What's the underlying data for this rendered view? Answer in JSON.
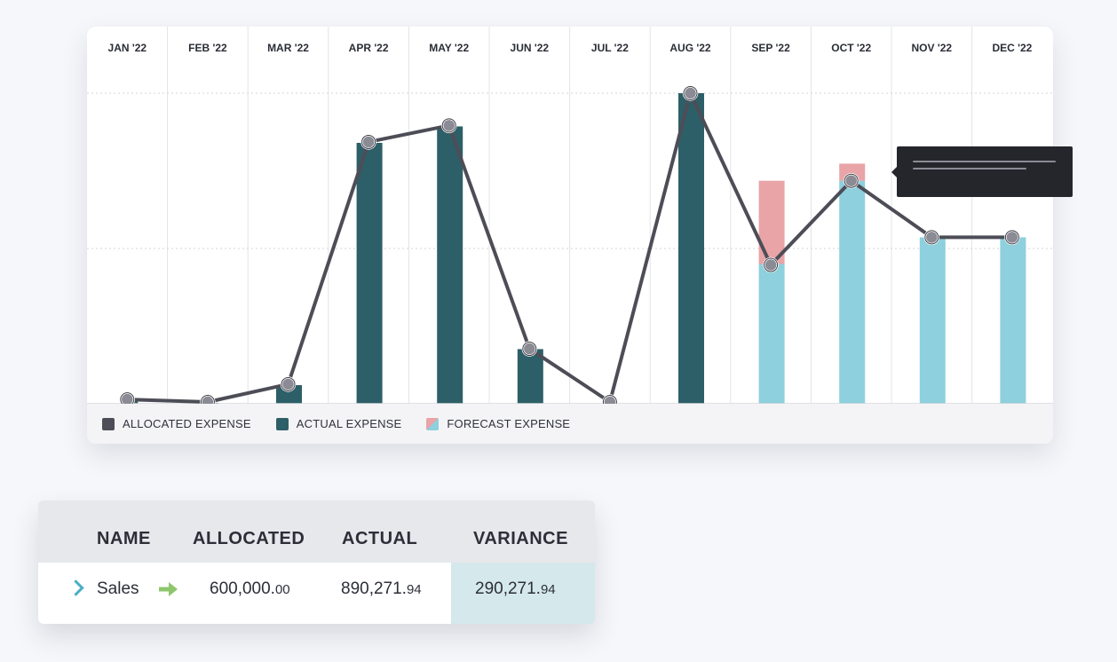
{
  "chart_data": {
    "type": "bar",
    "categories": [
      "JAN '22",
      "FEB '22",
      "MAR '22",
      "APR '22",
      "MAY '22",
      "JUN '22",
      "JUL '22",
      "AUG '22",
      "SEP '22",
      "OCT '22",
      "NOV '22",
      "DEC '22"
    ],
    "series": [
      {
        "name": "ALLOCATED EXPENSE",
        "kind": "line",
        "values": [
          1.4,
          0.4,
          6.3,
          84.3,
          89.6,
          17.7,
          0,
          100,
          44.7,
          71.8,
          53.6,
          53.6
        ]
      },
      {
        "name": "ACTUAL EXPENSE",
        "kind": "bar",
        "values": [
          1.7,
          0.3,
          6.0,
          84.0,
          89.3,
          17.6,
          0,
          100,
          0,
          0,
          0,
          0
        ]
      },
      {
        "name": "FORECAST EXPENSE",
        "kind": "stacked-bar",
        "values": [
          0,
          0,
          0,
          0,
          0,
          0,
          0,
          0,
          71.8,
          77.3,
          53.6,
          53.6
        ],
        "split": [
          0,
          0,
          0,
          0,
          0,
          0,
          0,
          0,
          45.0,
          71.8,
          53.6,
          53.6
        ]
      }
    ],
    "ylim": [
      0,
      100
    ],
    "grid": true,
    "legend": "bottom-left",
    "colors": {
      "allocated": "#4d4d57",
      "actual": "#2d5f68",
      "forecast_over": "#e8a4a6",
      "forecast_base": "#8ed0dd"
    }
  },
  "legend": {
    "allocated": "ALLOCATED EXPENSE",
    "actual": "ACTUAL EXPENSE",
    "forecast": "FORECAST EXPENSE"
  },
  "table": {
    "headers": [
      "NAME",
      "ALLOCATED",
      "ACTUAL",
      "VARIANCE"
    ],
    "row": {
      "name": "Sales",
      "allocated_int": "600,000.",
      "allocated_dec": "00",
      "actual_int": "890,271.",
      "actual_dec": "94",
      "variance_int": "290,271.",
      "variance_dec": "94"
    }
  }
}
